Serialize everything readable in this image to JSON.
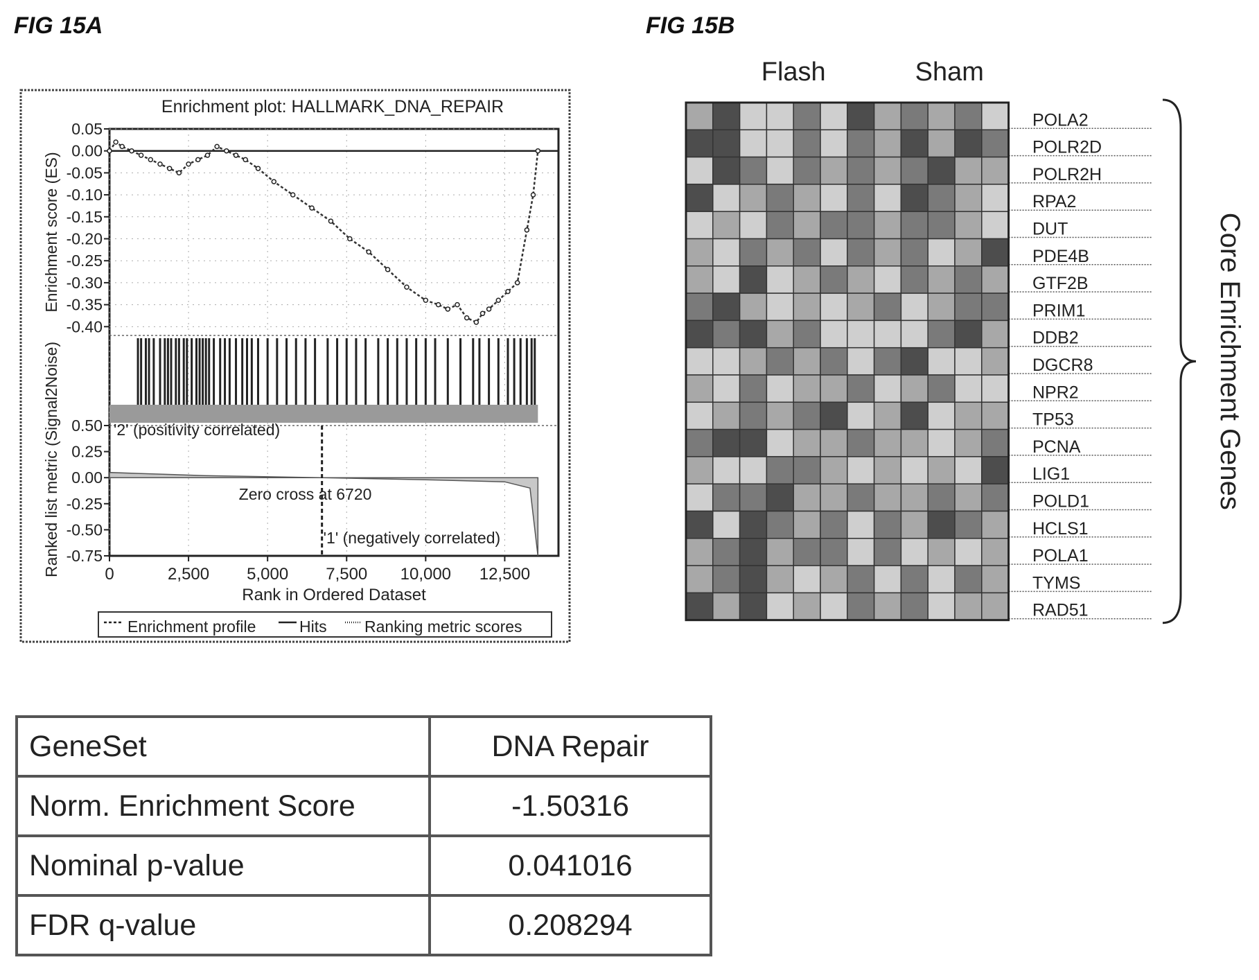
{
  "fig_a_label": "FIG 15A",
  "fig_b_label": "FIG 15B",
  "chart_data": [
    {
      "type": "line",
      "title": "Enrichment plot: HALLMARK_DNA_REPAIR",
      "xlabel": "Rank in Ordered Dataset",
      "ylabel": "Enrichment score (ES)",
      "ylabel_bottom": "Ranked list metric (Signal2Noise)",
      "xlim": [
        0,
        14200
      ],
      "xticks": [
        0,
        2500,
        5000,
        7500,
        10000,
        12500
      ],
      "xtick_labels": [
        "0",
        "2,500",
        "5,000",
        "7,500",
        "10,000",
        "12,500"
      ],
      "ylim": [
        -0.42,
        0.05
      ],
      "yticks": [
        0.05,
        0.0,
        -0.05,
        -0.1,
        -0.15,
        -0.2,
        -0.25,
        -0.3,
        -0.35,
        -0.4
      ],
      "ytick_labels": [
        "0.05",
        "0.00",
        "-0.05",
        "-0.10",
        "-0.15",
        "-0.20",
        "-0.25",
        "-0.30",
        "-0.35",
        "-0.40"
      ],
      "enrichment_profile": {
        "x": [
          0,
          200,
          400,
          700,
          1000,
          1300,
          1600,
          1900,
          2200,
          2500,
          2800,
          3100,
          3400,
          3700,
          4000,
          4300,
          4700,
          5200,
          5800,
          6400,
          7000,
          7600,
          8200,
          8800,
          9400,
          10000,
          10400,
          10700,
          11000,
          11300,
          11600,
          11800,
          12000,
          12300,
          12600,
          12900,
          13200,
          13400,
          13550
        ],
        "y": [
          0.0,
          0.02,
          0.01,
          0.0,
          -0.01,
          -0.02,
          -0.03,
          -0.04,
          -0.05,
          -0.03,
          -0.02,
          -0.01,
          0.01,
          0.0,
          -0.01,
          -0.02,
          -0.04,
          -0.07,
          -0.1,
          -0.13,
          -0.16,
          -0.2,
          -0.23,
          -0.27,
          -0.31,
          -0.34,
          -0.35,
          -0.36,
          -0.35,
          -0.38,
          -0.39,
          -0.37,
          -0.36,
          -0.34,
          -0.32,
          -0.3,
          -0.18,
          -0.1,
          0.0
        ]
      },
      "hits": [
        900,
        1000,
        1150,
        1250,
        1400,
        1600,
        1750,
        1850,
        1950,
        2100,
        2200,
        2350,
        2450,
        2600,
        2750,
        2850,
        2950,
        3050,
        3150,
        3300,
        3500,
        3650,
        3800,
        4000,
        4200,
        4350,
        4500,
        4700,
        5000,
        5300,
        5600,
        5900,
        6200,
        6500,
        6900,
        7200,
        7500,
        7800,
        8100,
        8500,
        8800,
        9100,
        9400,
        9700,
        10000,
        10300,
        10700,
        11100,
        11500,
        11700,
        12000,
        12300,
        12600,
        12800,
        13000,
        13200,
        13350,
        13450
      ],
      "ranking_metric": {
        "ylim": [
          -0.75,
          0.5
        ],
        "yticks": [
          0.5,
          0.25,
          0.0,
          -0.25,
          -0.5,
          -0.75
        ],
        "ytick_labels": [
          "0.50",
          "0.25",
          "0.00",
          "-0.25",
          "-0.50",
          "-0.75"
        ],
        "x": [
          0,
          1000,
          3000,
          6720,
          10000,
          12500,
          13300,
          13550
        ],
        "y": [
          0.05,
          0.04,
          0.02,
          0.0,
          -0.02,
          -0.04,
          -0.1,
          -0.75
        ]
      },
      "annotations": {
        "pos": "'2' (positivity correlated)",
        "zero_cross": "Zero cross at 6720",
        "neg": "'1' (negatively correlated)"
      },
      "zero_cross_x": 6720,
      "legend": [
        "Enrichment profile",
        "Hits",
        "Ranking metric scores"
      ],
      "legend_position": "bottom"
    },
    {
      "type": "heatmap",
      "column_groups": [
        "Flash",
        "Sham"
      ],
      "column_count": 12,
      "rows": [
        "POLA2",
        "POLR2D",
        "POLR2H",
        "RPA2",
        "DUT",
        "PDE4B",
        "GTF2B",
        "PRIM1",
        "DDB2",
        "DGCR8",
        "NPR2",
        "TP53",
        "PCNA",
        "LIG1",
        "POLD1",
        "HCLS1",
        "POLA1",
        "TYMS",
        "RAD51"
      ],
      "bracket_label": "Core Enrichment Genes",
      "palette": [
        "#f4f4f4",
        "#cfcfcf",
        "#a8a8a8",
        "#7a7a7a",
        "#4d4d4d"
      ],
      "cells": [
        [
          2,
          4,
          1,
          1,
          3,
          1,
          4,
          2,
          3,
          2,
          3,
          1
        ],
        [
          4,
          4,
          1,
          1,
          3,
          1,
          3,
          2,
          4,
          2,
          4,
          3
        ],
        [
          1,
          4,
          3,
          1,
          3,
          2,
          3,
          2,
          3,
          4,
          2,
          2
        ],
        [
          4,
          1,
          2,
          3,
          2,
          1,
          3,
          1,
          4,
          3,
          2,
          1
        ],
        [
          1,
          2,
          1,
          3,
          2,
          3,
          3,
          2,
          3,
          3,
          2,
          1
        ],
        [
          2,
          1,
          3,
          2,
          3,
          1,
          3,
          2,
          3,
          1,
          2,
          4
        ],
        [
          2,
          1,
          4,
          1,
          2,
          3,
          2,
          1,
          3,
          2,
          3,
          2
        ],
        [
          3,
          4,
          2,
          1,
          2,
          1,
          2,
          3,
          1,
          2,
          3,
          3
        ],
        [
          4,
          3,
          4,
          2,
          3,
          1,
          1,
          1,
          1,
          3,
          4,
          2
        ],
        [
          1,
          1,
          2,
          3,
          2,
          3,
          1,
          3,
          4,
          1,
          1,
          2
        ],
        [
          2,
          1,
          3,
          1,
          2,
          2,
          3,
          1,
          2,
          3,
          1,
          1
        ],
        [
          1,
          2,
          3,
          2,
          3,
          4,
          1,
          2,
          4,
          1,
          2,
          2
        ],
        [
          3,
          4,
          4,
          1,
          2,
          2,
          3,
          2,
          2,
          1,
          2,
          3
        ],
        [
          2,
          1,
          1,
          3,
          3,
          2,
          1,
          2,
          1,
          2,
          1,
          4
        ],
        [
          1,
          3,
          3,
          4,
          2,
          2,
          3,
          2,
          2,
          3,
          2,
          3
        ],
        [
          4,
          1,
          4,
          3,
          2,
          3,
          1,
          3,
          2,
          4,
          3,
          2
        ],
        [
          2,
          3,
          4,
          2,
          3,
          3,
          1,
          3,
          1,
          2,
          1,
          2
        ],
        [
          2,
          3,
          4,
          2,
          1,
          2,
          3,
          1,
          3,
          1,
          3,
          2
        ],
        [
          4,
          2,
          4,
          1,
          2,
          1,
          3,
          2,
          3,
          1,
          2,
          2
        ]
      ]
    }
  ],
  "table": {
    "rows": [
      {
        "key": "GeneSet",
        "value": "DNA Repair"
      },
      {
        "key": "Norm. Enrichment Score",
        "value": "-1.50316"
      },
      {
        "key": "Nominal p-value",
        "value": "0.041016"
      },
      {
        "key": "FDR q-value",
        "value": "0.208294"
      }
    ]
  }
}
